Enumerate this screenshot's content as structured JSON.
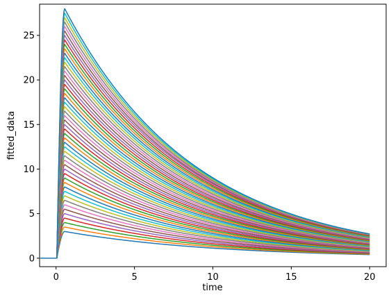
{
  "chart_data": {
    "type": "line",
    "title": "",
    "xlabel": "time",
    "ylabel": "fitted_data",
    "xlim": [
      -1.05,
      21.05
    ],
    "ylim": [
      -0.95,
      28.5
    ],
    "xticks": [
      0,
      5,
      10,
      15,
      20
    ],
    "yticks": [
      0,
      5,
      10,
      15,
      20,
      25
    ],
    "grid": false,
    "legend": "none",
    "x_range": [
      -1,
      20
    ],
    "onset_time": 0.05,
    "peak_time": 0.55,
    "series_peaks": [
      3.0,
      3.5,
      4.0,
      4.5,
      5.0,
      5.5,
      6.0,
      6.5,
      7.0,
      7.5,
      8.0,
      8.5,
      9.0,
      9.5,
      10.0,
      10.5,
      11.0,
      11.5,
      12.0,
      12.5,
      13.0,
      13.5,
      14.0,
      14.5,
      15.0,
      15.5,
      16.0,
      16.5,
      17.0,
      17.5,
      18.0,
      18.5,
      19.0,
      19.5,
      20.0,
      20.5,
      21.0,
      21.5,
      22.0,
      22.5,
      23.0,
      23.5,
      24.0,
      24.5,
      25.0,
      25.5,
      26.0,
      26.5,
      27.0,
      27.5,
      28.0
    ],
    "series_end_values": [
      0.4,
      0.45,
      0.5,
      0.55,
      0.6,
      0.65,
      0.7,
      0.75,
      0.8,
      0.85,
      0.9,
      0.95,
      1.0,
      1.05,
      1.1,
      1.15,
      1.2,
      1.25,
      1.3,
      1.35,
      1.4,
      1.45,
      1.5,
      1.55,
      1.6,
      1.65,
      1.7,
      1.75,
      1.8,
      1.85,
      1.9,
      1.95,
      2.0,
      2.05,
      2.1,
      2.15,
      2.2,
      2.25,
      2.3,
      2.35,
      2.4,
      2.45,
      2.5,
      2.55,
      2.6,
      2.62,
      2.64,
      2.66,
      2.68,
      2.7,
      2.72
    ],
    "colors": [
      "#1f77b4",
      "#ff7f0e",
      "#2ca02c",
      "#d62728",
      "#9467bd",
      "#8c564b",
      "#e377c2",
      "#7f7f7f",
      "#bcbd22",
      "#17becf"
    ]
  }
}
